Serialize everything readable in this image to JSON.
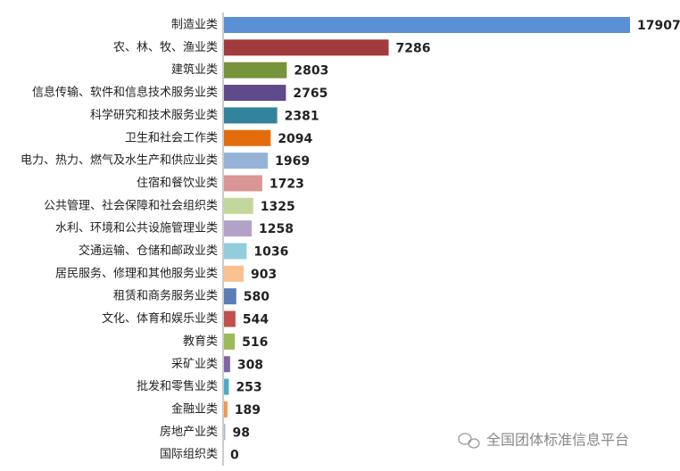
{
  "chart_data": {
    "type": "hbar",
    "categories": [
      "制造业类",
      "农、林、牧、渔业类",
      "建筑业类",
      "信息传输、软件和信息技术服务业类",
      "科学研究和技术服务业类",
      "卫生和社会工作类",
      "电力、热力、燃气及水生产和供应业类",
      "住宿和餐饮业类",
      "公共管理、社会保障和社会组织类",
      "水利、环境和公共设施管理业类",
      "交通运输、仓储和邮政业类",
      "居民服务、修理和其他服务业类",
      "租赁和商务服务业类",
      "文化、体育和娱乐业类",
      "教育类",
      "采矿业类",
      "批发和零售业类",
      "金融业类",
      "房地产业类",
      "国际组织类"
    ],
    "values": [
      17907,
      7286,
      2803,
      2765,
      2381,
      2094,
      1969,
      1723,
      1325,
      1258,
      1036,
      903,
      580,
      544,
      516,
      308,
      253,
      189,
      98,
      0
    ],
    "colors": [
      "#5b8fd6",
      "#a23b3d",
      "#77933c",
      "#5f4a8b",
      "#31849b",
      "#e46c0a",
      "#95b3d7",
      "#d99694",
      "#c3d69b",
      "#b3a2c7",
      "#93cddd",
      "#fac090",
      "#5a7db8",
      "#c0504d",
      "#9bbb59",
      "#8064a2",
      "#4bacc6",
      "#f79646",
      "#a9b7d6",
      "#c0504d"
    ],
    "annotation": "全国团体标准信息平台"
  }
}
